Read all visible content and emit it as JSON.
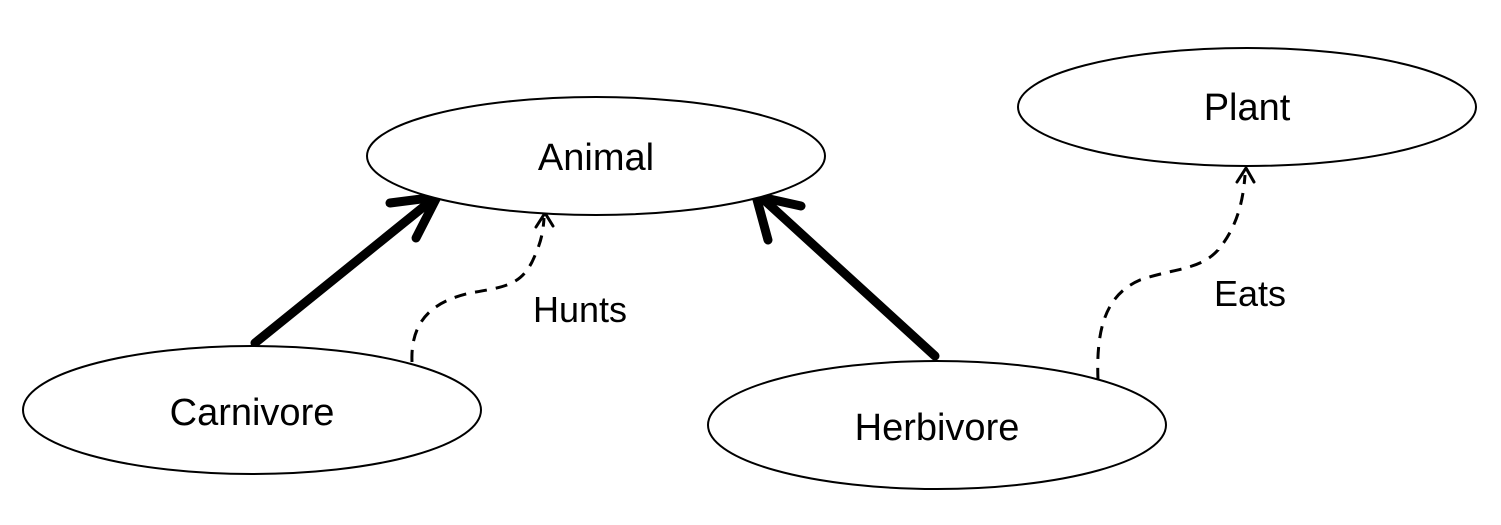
{
  "nodes": {
    "animal": "Animal",
    "plant": "Plant",
    "carnivore": "Carnivore",
    "herbivore": "Herbivore"
  },
  "relations": {
    "hunts": "Hunts",
    "eats": "Eats"
  },
  "colors": {
    "stroke": "#000000",
    "fill": "#ffffff"
  }
}
